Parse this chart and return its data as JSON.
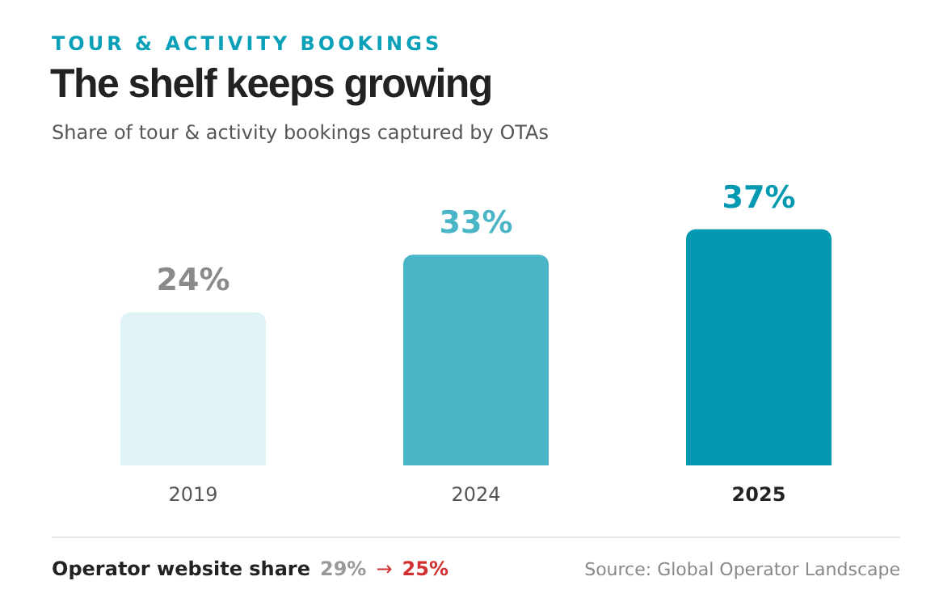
{
  "chart_data": {
    "type": "bar",
    "title": "The shelf keeps growing",
    "subtitle": "Share of tour & activity bookings captured by OTAs",
    "categories": [
      "2019",
      "2024",
      "2025"
    ],
    "values": [
      24,
      33,
      37
    ],
    "colors": [
      "#dff3f6",
      "#4ab5c6",
      "#0399b0"
    ],
    "value_labels": [
      "24%",
      "33%",
      "37%"
    ],
    "annotations": [
      "TOUR & ACTIVITY BOOKINGS",
      "Operator website share",
      "29%",
      "→",
      "25%",
      "Source: Global Operator Landscape"
    ]
  }
}
